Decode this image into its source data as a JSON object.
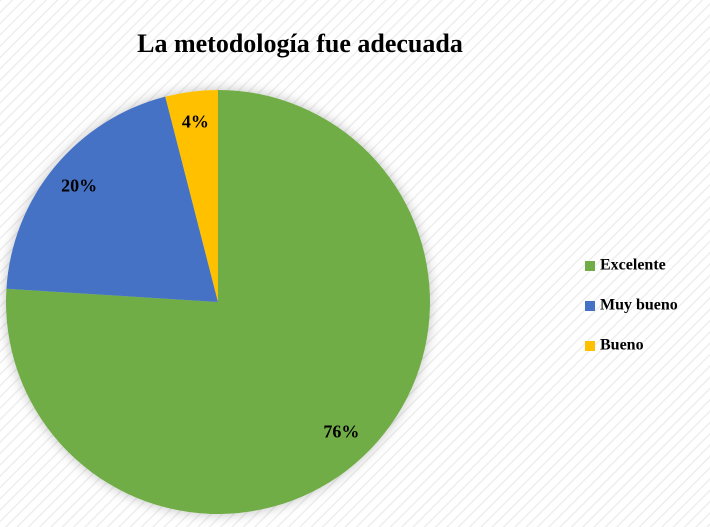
{
  "chart_data": {
    "type": "pie",
    "title": "La metodología fue adecuada",
    "categories": [
      "Excelente",
      "Muy bueno",
      "Bueno"
    ],
    "values": [
      76,
      20,
      4
    ],
    "value_labels": [
      "76%",
      "20%",
      "4%"
    ],
    "colors": [
      "#70ad47",
      "#4472c4",
      "#ffc000"
    ],
    "legend": "right"
  }
}
